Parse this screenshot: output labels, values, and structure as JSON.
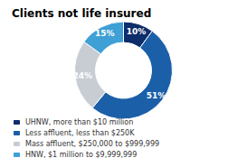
{
  "chart_data": {
    "type": "pie",
    "title": "Clients not life insured",
    "categories": [
      "UHNW, more than $10 million",
      "Less affluent, less than $250K",
      "Mass affluent, $250,000 to $999,999",
      "HNW, $1 million to $9,999,999"
    ],
    "values": [
      10,
      51,
      24,
      15
    ],
    "value_labels": [
      "10%",
      "51%",
      "24%",
      "15%"
    ],
    "colors": [
      "#0d2d6b",
      "#1a5fa8",
      "#c8cdd4",
      "#3ea0d5"
    ],
    "data_labels": true,
    "legend": "bottom left"
  }
}
